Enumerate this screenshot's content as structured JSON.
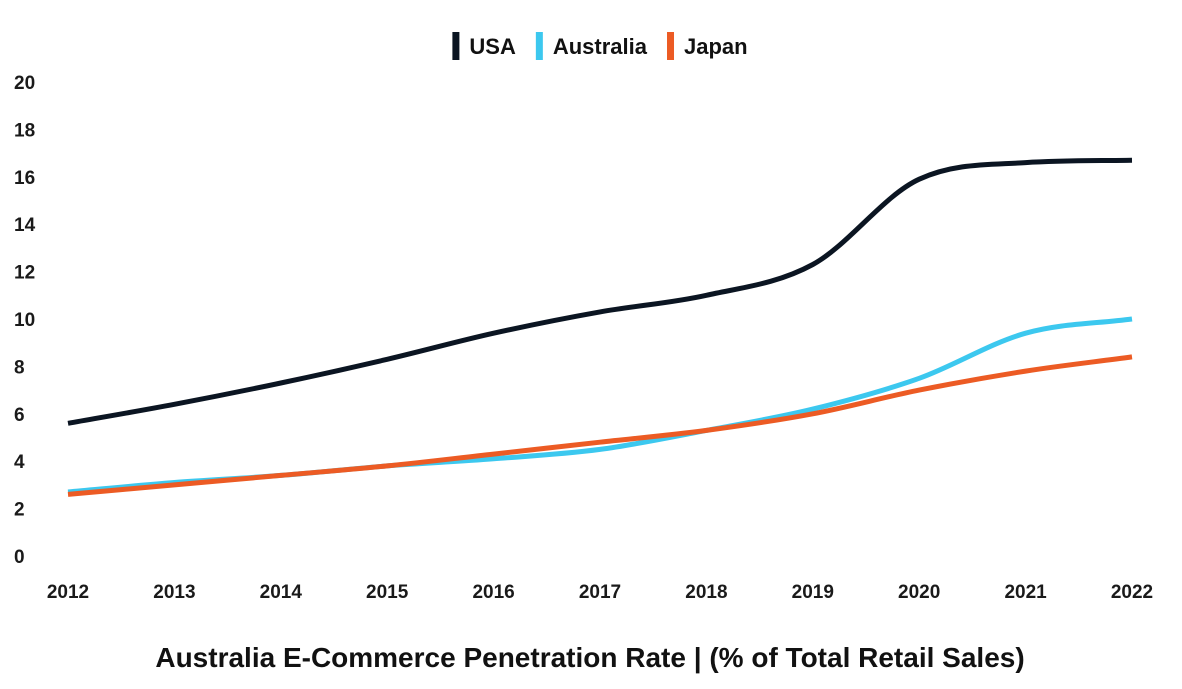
{
  "chart_data": {
    "type": "line",
    "title": "Australia E-Commerce Penetration Rate | (% of Total Retail Sales)",
    "xlabel": "",
    "ylabel": "",
    "x": [
      2012,
      2013,
      2014,
      2015,
      2016,
      2017,
      2018,
      2019,
      2020,
      2021,
      2022
    ],
    "x_tick_labels": [
      "2012",
      "2013",
      "2014",
      "2015",
      "2016",
      "2017",
      "2018",
      "2019",
      "2020",
      "2021",
      "2022"
    ],
    "y_tick_labels": [
      "0",
      "2",
      "4",
      "6",
      "8",
      "10",
      "12",
      "14",
      "16",
      "18",
      "20"
    ],
    "ylim": [
      0,
      20
    ],
    "grid": false,
    "legend_position": "top-center",
    "series": [
      {
        "name": "USA",
        "color": "#0b1522",
        "values": [
          5.6,
          6.4,
          7.3,
          8.3,
          9.4,
          10.3,
          11.0,
          12.3,
          15.9,
          16.6,
          16.7
        ]
      },
      {
        "name": "Australia",
        "color": "#3cc8ef",
        "values": [
          2.7,
          3.1,
          3.4,
          3.8,
          4.1,
          4.5,
          5.3,
          6.2,
          7.5,
          9.4,
          10.0
        ]
      },
      {
        "name": "Japan",
        "color": "#ec5b24",
        "values": [
          2.6,
          3.0,
          3.4,
          3.8,
          4.3,
          4.8,
          5.3,
          6.0,
          7.0,
          7.8,
          8.4
        ]
      }
    ]
  }
}
